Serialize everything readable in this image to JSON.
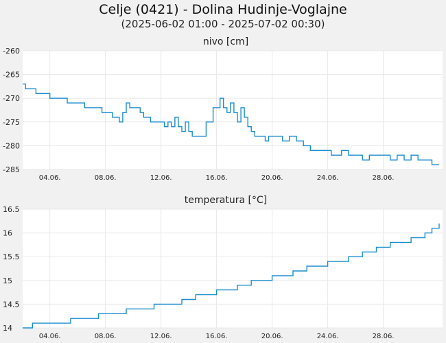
{
  "header": {
    "title": "Celje (0421) - Dolina Hudinje-Voglajne",
    "subtitle": "(2025-06-02 01:00 - 2025-07-02 00:30)"
  },
  "colors": {
    "line": "#1b8ccf",
    "background": "#f1f1f1",
    "plot_background": "#ffffff",
    "grid": "#e8e8e8"
  },
  "chart_data": [
    {
      "type": "line",
      "title": "nivo [cm]",
      "xlabel": "",
      "ylabel": "",
      "xlim": [
        "2025-06-02",
        "2025-07-02"
      ],
      "ylim": [
        -285,
        -260
      ],
      "yticks": [
        "-260",
        "-265",
        "-270",
        "-275",
        "-280",
        "-285"
      ],
      "xticks": [
        "04.06.",
        "08.06.",
        "12.06.",
        "16.06.",
        "20.06.",
        "24.06.",
        "28.06."
      ],
      "grid": true,
      "series": [
        {
          "x": [
            "2025-06-02 01:00",
            "2025-06-02 06:00",
            "2025-06-02 08:00",
            "2025-06-03 00:00",
            "2025-06-03 12:00",
            "2025-06-04 00:00",
            "2025-06-04 12:00",
            "2025-06-05 06:00",
            "2025-06-05 18:00",
            "2025-06-06 12:00",
            "2025-06-07 12:00",
            "2025-06-07 18:00",
            "2025-06-08 00:00",
            "2025-06-08 12:00",
            "2025-06-08 16:00",
            "2025-06-08 20:00",
            "2025-06-09 00:00",
            "2025-06-09 06:00",
            "2025-06-09 12:00",
            "2025-06-09 18:00",
            "2025-06-10 06:00",
            "2025-06-10 12:00",
            "2025-06-10 18:00",
            "2025-06-11 06:00",
            "2025-06-11 18:00",
            "2025-06-12 06:00",
            "2025-06-12 12:00",
            "2025-06-12 18:00",
            "2025-06-13 00:00",
            "2025-06-13 06:00",
            "2025-06-13 12:00",
            "2025-06-13 18:00",
            "2025-06-14 00:00",
            "2025-06-14 06:00",
            "2025-06-14 12:00",
            "2025-06-14 18:00",
            "2025-06-15 06:00",
            "2025-06-15 18:00",
            "2025-06-16 00:00",
            "2025-06-16 06:00",
            "2025-06-16 12:00",
            "2025-06-16 18:00",
            "2025-06-17 00:00",
            "2025-06-17 06:00",
            "2025-06-17 12:00",
            "2025-06-17 18:00",
            "2025-06-18 00:00",
            "2025-06-18 06:00",
            "2025-06-18 12:00",
            "2025-06-18 18:00",
            "2025-06-19 00:00",
            "2025-06-19 06:00",
            "2025-06-19 12:00",
            "2025-06-19 18:00",
            "2025-06-20 06:00",
            "2025-06-20 18:00",
            "2025-06-21 06:00",
            "2025-06-21 18:00",
            "2025-06-22 06:00",
            "2025-06-22 18:00",
            "2025-06-23 06:00",
            "2025-06-23 18:00",
            "2025-06-24 06:00",
            "2025-06-25 00:00",
            "2025-06-25 12:00",
            "2025-06-26 00:00",
            "2025-06-26 06:00",
            "2025-06-26 12:00",
            "2025-06-27 00:00",
            "2025-06-27 12:00",
            "2025-06-28 00:00",
            "2025-06-28 12:00",
            "2025-06-29 00:00",
            "2025-06-29 12:00",
            "2025-06-30 00:00",
            "2025-06-30 12:00",
            "2025-07-01 00:00",
            "2025-07-01 12:00",
            "2025-07-02 00:30"
          ],
          "y": [
            -267,
            -268,
            -268,
            -269,
            -269,
            -270,
            -270,
            -271,
            -271,
            -272,
            -272,
            -273,
            -273,
            -274,
            -274,
            -274,
            -275,
            -273,
            -271,
            -272,
            -272,
            -273,
            -274,
            -275,
            -275,
            -276,
            -275,
            -276,
            -274,
            -276,
            -277,
            -275,
            -277,
            -278,
            -278,
            -278,
            -275,
            -272,
            -272,
            -270,
            -272,
            -273,
            -271,
            -273,
            -275,
            -272,
            -274,
            -276,
            -277,
            -278,
            -278,
            -278,
            -279,
            -278,
            -278,
            -279,
            -278,
            -279,
            -280,
            -281,
            -281,
            -281,
            -282,
            -281,
            -282,
            -282,
            -282,
            -283,
            -282,
            -282,
            -282,
            -283,
            -282,
            -283,
            -282,
            -283,
            -283,
            -284,
            -284
          ]
        }
      ]
    },
    {
      "type": "line",
      "title": "temperatura [°C]",
      "xlabel": "",
      "ylabel": "",
      "xlim": [
        "2025-06-02",
        "2025-07-02"
      ],
      "ylim": [
        14,
        16.5
      ],
      "yticks": [
        "16.5",
        "16",
        "15.5",
        "15",
        "14.5",
        "14"
      ],
      "xticks": [
        "04.06.",
        "08.06.",
        "12.06.",
        "16.06.",
        "20.06.",
        "24.06.",
        "28.06."
      ],
      "grid": true,
      "series": [
        {
          "x": [
            "2025-06-02 01:00",
            "2025-06-02 12:00",
            "2025-06-02 18:00",
            "2025-06-04 00:00",
            "2025-06-04 12:00",
            "2025-06-05 12:00",
            "2025-06-06 00:00",
            "2025-06-06 12:00",
            "2025-06-07 12:00",
            "2025-06-08 00:00",
            "2025-06-08 12:00",
            "2025-06-09 12:00",
            "2025-06-10 00:00",
            "2025-06-10 12:00",
            "2025-06-11 12:00",
            "2025-06-12 00:00",
            "2025-06-12 12:00",
            "2025-06-13 12:00",
            "2025-06-14 00:00",
            "2025-06-14 12:00",
            "2025-06-15 12:00",
            "2025-06-16 00:00",
            "2025-06-16 12:00",
            "2025-06-17 12:00",
            "2025-06-18 00:00",
            "2025-06-18 12:00",
            "2025-06-19 12:00",
            "2025-06-20 00:00",
            "2025-06-20 12:00",
            "2025-06-21 12:00",
            "2025-06-22 00:00",
            "2025-06-22 12:00",
            "2025-06-23 12:00",
            "2025-06-24 00:00",
            "2025-06-24 12:00",
            "2025-06-25 12:00",
            "2025-06-26 00:00",
            "2025-06-26 12:00",
            "2025-06-27 12:00",
            "2025-06-28 00:00",
            "2025-06-28 12:00",
            "2025-06-29 12:00",
            "2025-06-30 00:00",
            "2025-06-30 12:00",
            "2025-07-01 00:00",
            "2025-07-01 12:00",
            "2025-07-02 00:30"
          ],
          "y": [
            14.0,
            14.0,
            14.1,
            14.1,
            14.1,
            14.2,
            14.2,
            14.2,
            14.3,
            14.3,
            14.3,
            14.4,
            14.4,
            14.4,
            14.5,
            14.5,
            14.5,
            14.6,
            14.6,
            14.7,
            14.7,
            14.8,
            14.8,
            14.9,
            14.9,
            15.0,
            15.0,
            15.1,
            15.1,
            15.2,
            15.2,
            15.3,
            15.3,
            15.4,
            15.4,
            15.5,
            15.5,
            15.6,
            15.7,
            15.7,
            15.8,
            15.8,
            15.9,
            15.9,
            16.0,
            16.1,
            16.2
          ]
        }
      ]
    }
  ]
}
